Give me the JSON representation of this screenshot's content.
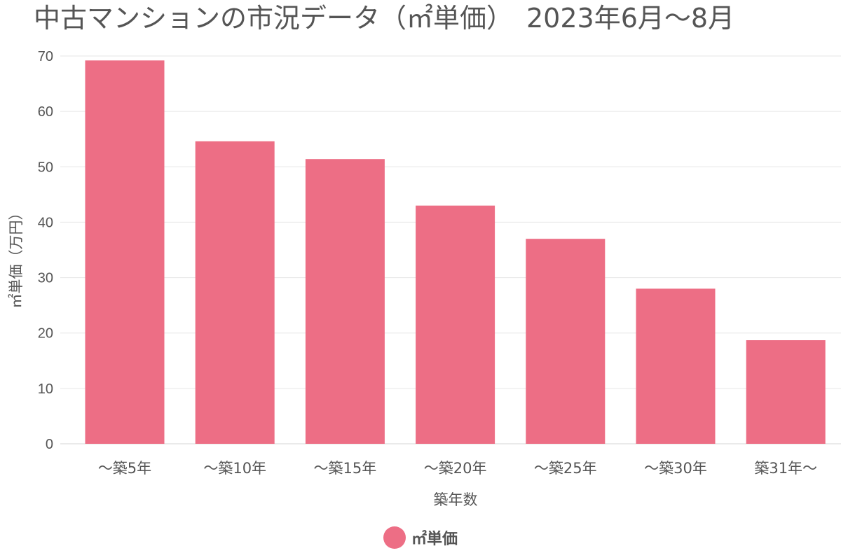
{
  "chart_data": {
    "type": "bar",
    "title": "中古マンションの市況データ（㎡単価）　2023年6月〜8月",
    "xlabel": "築年数",
    "ylabel": "㎡単価（万円）",
    "categories": [
      "〜築5年",
      "〜築10年",
      "〜築15年",
      "〜築20年",
      "〜築25年",
      "〜築30年",
      "築31年〜"
    ],
    "series": [
      {
        "name": "㎡単価",
        "values": [
          69.2,
          54.6,
          51.4,
          43.0,
          37.0,
          28.0,
          18.7
        ]
      }
    ],
    "ylim": [
      0,
      70
    ],
    "yticks": [
      0,
      10,
      20,
      30,
      40,
      50,
      60,
      70
    ],
    "grid": true,
    "legend": "bottom-center",
    "colors": {
      "bar": "#ed6e85",
      "grid": "#e6e6e6",
      "text": "#555555"
    }
  }
}
